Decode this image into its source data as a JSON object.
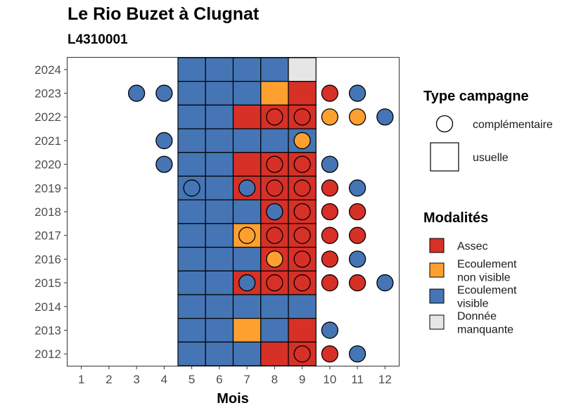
{
  "title": "Le Rio Buzet à Clugnat",
  "subtitle": "L4310001",
  "chart_data": {
    "type": "heatmap",
    "xlabel": "Mois",
    "ylabel": "",
    "x_ticks": [
      1,
      2,
      3,
      4,
      5,
      6,
      7,
      8,
      9,
      10,
      11,
      12
    ],
    "y_ticks": [
      2012,
      2013,
      2014,
      2015,
      2016,
      2017,
      2018,
      2019,
      2020,
      2021,
      2022,
      2023,
      2024
    ],
    "xlim": [
      0.5,
      12.5
    ],
    "ylim": [
      2011.5,
      2024.5
    ],
    "modalites": {
      "assec": {
        "label": "Assec",
        "color": "#D73027"
      },
      "non_visible": {
        "label": "Ecoulement non visible",
        "color": "#FDA02F"
      },
      "visible": {
        "label": "Ecoulement visible",
        "color": "#4575B4"
      },
      "manquante": {
        "label": "Donnée manquante",
        "color": "#E6E6E6"
      }
    },
    "legend_type": {
      "title": "Type campagne",
      "items": [
        {
          "key": "complementaire",
          "label": "complémentaire",
          "shape": "circle"
        },
        {
          "key": "usuelle",
          "label": "usuelle",
          "shape": "square"
        }
      ]
    },
    "legend_modalites": {
      "title": "Modalités",
      "items": [
        {
          "key": "assec",
          "lines": [
            "Assec"
          ]
        },
        {
          "key": "non_visible",
          "lines": [
            "Ecoulement",
            "non visible"
          ]
        },
        {
          "key": "visible",
          "lines": [
            "Ecoulement",
            "visible"
          ]
        },
        {
          "key": "manquante",
          "lines": [
            "Donnée",
            "manquante"
          ]
        }
      ]
    },
    "usuelle": [
      {
        "year": 2024,
        "values": {
          "5": "visible",
          "6": "visible",
          "7": "visible",
          "8": "visible",
          "9": "manquante"
        }
      },
      {
        "year": 2023,
        "values": {
          "5": "visible",
          "6": "visible",
          "7": "visible",
          "8": "non_visible",
          "9": "assec"
        }
      },
      {
        "year": 2022,
        "values": {
          "5": "visible",
          "6": "visible",
          "7": "assec",
          "8": "assec",
          "9": "assec"
        }
      },
      {
        "year": 2021,
        "values": {
          "5": "visible",
          "6": "visible",
          "7": "visible",
          "8": "visible",
          "9": "visible"
        }
      },
      {
        "year": 2020,
        "values": {
          "5": "visible",
          "6": "visible",
          "7": "assec",
          "8": "assec",
          "9": "assec"
        }
      },
      {
        "year": 2019,
        "values": {
          "5": "visible",
          "6": "visible",
          "7": "assec",
          "8": "assec",
          "9": "assec"
        }
      },
      {
        "year": 2018,
        "values": {
          "5": "visible",
          "6": "visible",
          "7": "visible",
          "8": "assec",
          "9": "assec"
        }
      },
      {
        "year": 2017,
        "values": {
          "5": "visible",
          "6": "visible",
          "7": "non_visible",
          "8": "assec",
          "9": "assec"
        }
      },
      {
        "year": 2016,
        "values": {
          "5": "visible",
          "6": "visible",
          "7": "visible",
          "8": "assec",
          "9": "assec"
        }
      },
      {
        "year": 2015,
        "values": {
          "5": "visible",
          "6": "visible",
          "7": "assec",
          "8": "assec",
          "9": "assec"
        }
      },
      {
        "year": 2014,
        "values": {
          "5": "visible",
          "6": "visible",
          "7": "visible",
          "8": "visible",
          "9": "visible"
        }
      },
      {
        "year": 2013,
        "values": {
          "5": "visible",
          "6": "visible",
          "7": "non_visible",
          "8": "visible",
          "9": "assec"
        }
      },
      {
        "year": 2012,
        "values": {
          "5": "visible",
          "6": "visible",
          "7": "visible",
          "8": "assec",
          "9": "assec"
        }
      }
    ],
    "complementaire": [
      {
        "year": 2023,
        "month": 3,
        "value": "visible"
      },
      {
        "year": 2023,
        "month": 4,
        "value": "visible"
      },
      {
        "year": 2023,
        "month": 10,
        "value": "assec"
      },
      {
        "year": 2023,
        "month": 11,
        "value": "visible"
      },
      {
        "year": 2022,
        "month": 8,
        "value": "assec"
      },
      {
        "year": 2022,
        "month": 9,
        "value": "assec"
      },
      {
        "year": 2022,
        "month": 10,
        "value": "non_visible"
      },
      {
        "year": 2022,
        "month": 11,
        "value": "non_visible"
      },
      {
        "year": 2022,
        "month": 12,
        "value": "visible"
      },
      {
        "year": 2021,
        "month": 4,
        "value": "visible"
      },
      {
        "year": 2021,
        "month": 9,
        "value": "non_visible"
      },
      {
        "year": 2020,
        "month": 4,
        "value": "visible"
      },
      {
        "year": 2020,
        "month": 8,
        "value": "assec"
      },
      {
        "year": 2020,
        "month": 9,
        "value": "assec"
      },
      {
        "year": 2020,
        "month": 10,
        "value": "visible"
      },
      {
        "year": 2019,
        "month": 5,
        "value": "visible"
      },
      {
        "year": 2019,
        "month": 7,
        "value": "visible"
      },
      {
        "year": 2019,
        "month": 8,
        "value": "assec"
      },
      {
        "year": 2019,
        "month": 9,
        "value": "assec"
      },
      {
        "year": 2019,
        "month": 10,
        "value": "assec"
      },
      {
        "year": 2019,
        "month": 11,
        "value": "visible"
      },
      {
        "year": 2018,
        "month": 8,
        "value": "visible"
      },
      {
        "year": 2018,
        "month": 9,
        "value": "assec"
      },
      {
        "year": 2018,
        "month": 10,
        "value": "assec"
      },
      {
        "year": 2018,
        "month": 11,
        "value": "assec"
      },
      {
        "year": 2017,
        "month": 7,
        "value": "non_visible"
      },
      {
        "year": 2017,
        "month": 8,
        "value": "assec"
      },
      {
        "year": 2017,
        "month": 9,
        "value": "assec"
      },
      {
        "year": 2017,
        "month": 10,
        "value": "assec"
      },
      {
        "year": 2017,
        "month": 11,
        "value": "assec"
      },
      {
        "year": 2016,
        "month": 8,
        "value": "non_visible"
      },
      {
        "year": 2016,
        "month": 9,
        "value": "assec"
      },
      {
        "year": 2016,
        "month": 10,
        "value": "assec"
      },
      {
        "year": 2016,
        "month": 11,
        "value": "visible"
      },
      {
        "year": 2015,
        "month": 7,
        "value": "visible"
      },
      {
        "year": 2015,
        "month": 8,
        "value": "assec"
      },
      {
        "year": 2015,
        "month": 9,
        "value": "assec"
      },
      {
        "year": 2015,
        "month": 10,
        "value": "assec"
      },
      {
        "year": 2015,
        "month": 11,
        "value": "assec"
      },
      {
        "year": 2015,
        "month": 12,
        "value": "visible"
      },
      {
        "year": 2013,
        "month": 10,
        "value": "visible"
      },
      {
        "year": 2012,
        "month": 9,
        "value": "assec"
      },
      {
        "year": 2012,
        "month": 10,
        "value": "assec"
      },
      {
        "year": 2012,
        "month": 11,
        "value": "visible"
      }
    ]
  }
}
